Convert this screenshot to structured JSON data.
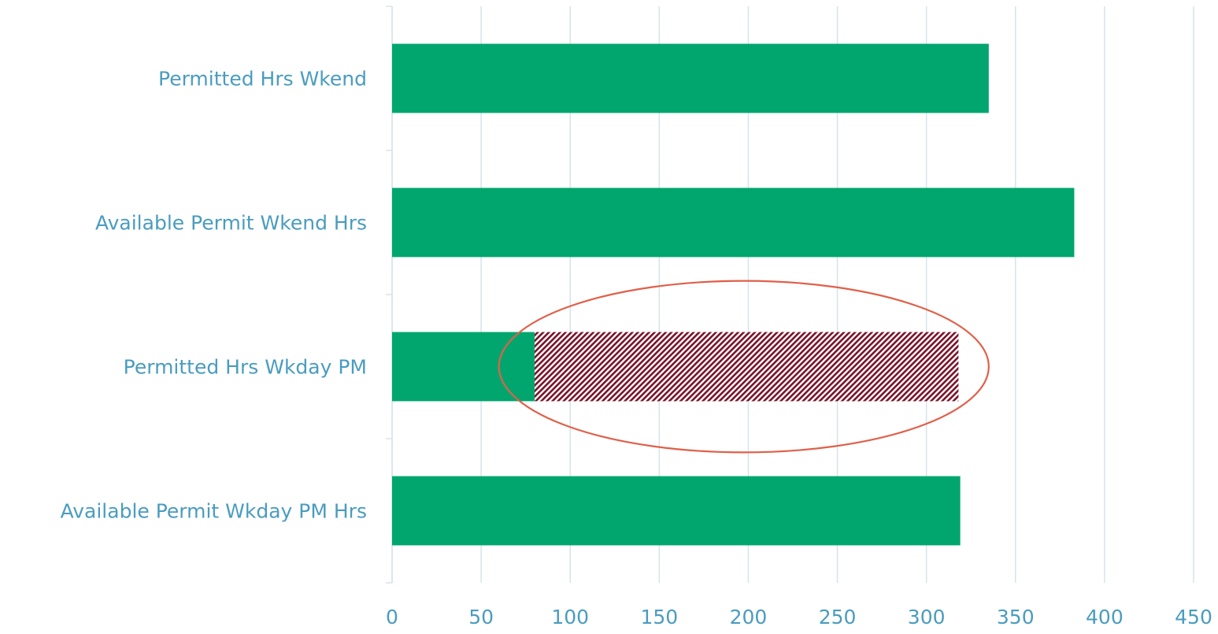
{
  "chart_data": {
    "type": "bar",
    "orientation": "horizontal",
    "stacked": true,
    "categories": [
      "Permitted Hrs Wkend",
      "Available Permit Wkend Hrs",
      "Permitted Hrs Wkday PM",
      "Available Permit Wkday PM Hrs"
    ],
    "series": [
      {
        "values": [
          335,
          383,
          80,
          319
        ],
        "color": "#00a66e",
        "pattern": "solid"
      },
      {
        "values": [
          0,
          0,
          238,
          0
        ],
        "color": "#7a1228",
        "pattern": "diagonal-hatch"
      }
    ],
    "xlim": [
      0,
      450
    ],
    "xticks": [
      0,
      50,
      100,
      150,
      200,
      250,
      300,
      350,
      400,
      450
    ],
    "gridlines": true,
    "grid_color": "#d6e4ea",
    "label_color": "#4a9cbf",
    "annotations": [
      {
        "type": "ellipse",
        "category": "Permitted Hrs Wkday PM",
        "x_range": [
          60,
          335
        ],
        "color": "#e0604a"
      }
    ]
  }
}
